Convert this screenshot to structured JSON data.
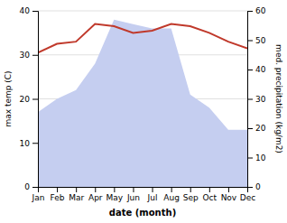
{
  "chart_data": {
    "type": "line",
    "categories": [
      "Jan",
      "Feb",
      "Mar",
      "Apr",
      "May",
      "Jun",
      "Jul",
      "Aug",
      "Sep",
      "Oct",
      "Nov",
      "Dec"
    ],
    "series": [
      {
        "type": "area",
        "color": "#c5cef0",
        "values": [
          17,
          20,
          22,
          28,
          38,
          37,
          36,
          36,
          21,
          18,
          13,
          13
        ]
      },
      {
        "type": "line",
        "color": "#c0392b",
        "values": [
          30.5,
          32.5,
          33.0,
          37.0,
          36.5,
          35.0,
          35.5,
          37.0,
          36.5,
          35.0,
          33.0,
          31.5
        ]
      }
    ],
    "xlabel": "date (month)",
    "ylabel": "max temp (C)",
    "y2label": "med. precipitation (kg/m2)",
    "ylim": [
      0,
      40
    ],
    "yticks": [
      0,
      10,
      20,
      30,
      40
    ],
    "y2lim": [
      0,
      60
    ],
    "y2ticks": [
      0,
      10,
      20,
      30,
      40,
      50,
      60
    ],
    "grid": true
  }
}
